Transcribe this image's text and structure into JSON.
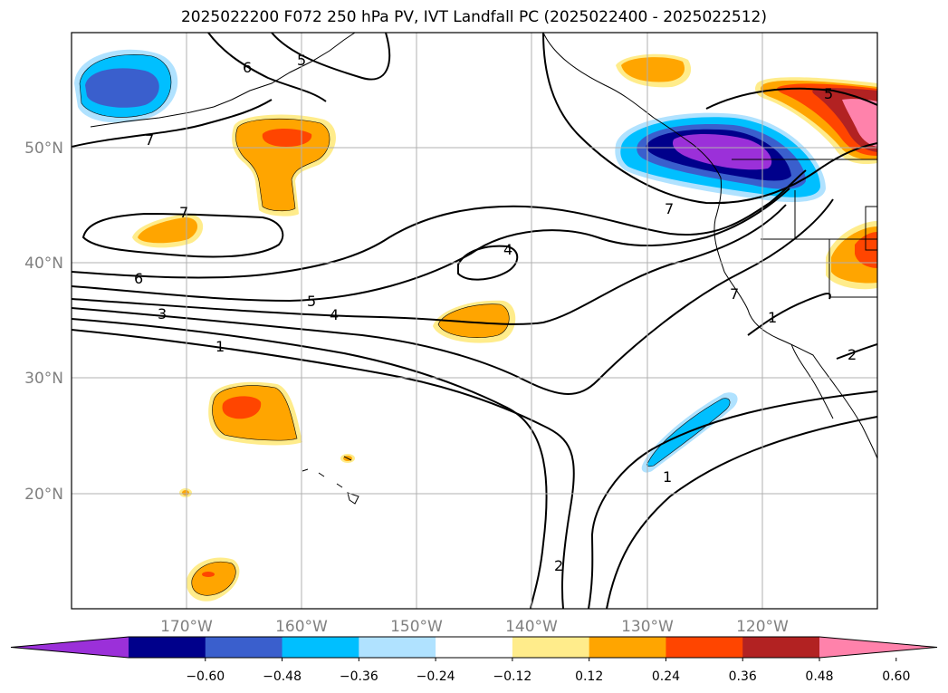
{
  "title": "2025022200 F072 250 hPa PV, IVT Landfall PC (2025022400 - 2025022512)",
  "map": {
    "lon_range": [
      -180,
      -110
    ],
    "lat_range": [
      10,
      60
    ],
    "lon_ticks": [
      "170°W",
      "160°W",
      "150°W",
      "140°W",
      "130°W",
      "120°W"
    ],
    "lat_ticks": [
      "50°N",
      "40°N",
      "30°N",
      "20°N"
    ],
    "grid": true
  },
  "contour_labels": [
    "7",
    "6",
    "5",
    "7",
    "7",
    "6",
    "5",
    "4",
    "3",
    "1",
    "4",
    "7",
    "5",
    "1",
    "2",
    "1",
    "2"
  ],
  "colorbar": {
    "ticks": [
      "−0.60",
      "−0.48",
      "−0.36",
      "−0.24",
      "−0.12",
      "0.12",
      "0.24",
      "0.36",
      "0.48",
      "0.60"
    ],
    "colors": [
      "#9b30d9",
      "#00008b",
      "#3a5fcd",
      "#00bfff",
      "#b0e2ff",
      "#ffffff",
      "#ffec8b",
      "#ffa500",
      "#ff4500",
      "#b22222",
      "#ff82ab"
    ],
    "extend": "both"
  }
}
